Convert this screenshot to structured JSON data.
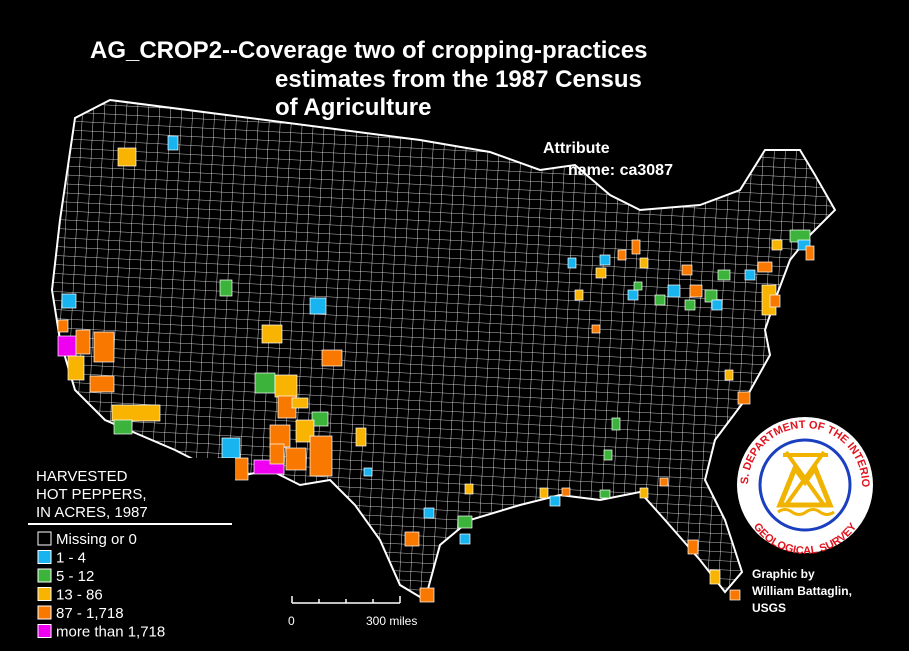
{
  "header": {
    "title_lines": [
      "AG_CROP2--Coverage  two  of  cropping-practices",
      "estimates  from  the  1987  Census",
      "of  Agriculture"
    ]
  },
  "attribute": {
    "label": "Attribute",
    "name": "name:  ca3087"
  },
  "legend": {
    "title_lines": [
      "HARVESTED",
      "HOT PEPPERS,",
      "IN ACRES, 1987"
    ],
    "items": [
      {
        "label": "Missing or 0",
        "color": "#000000"
      },
      {
        "label": "1  -  4",
        "color": "#18b4f0"
      },
      {
        "label": "5  -  12",
        "color": "#3cb43c"
      },
      {
        "label": "13  -  86",
        "color": "#f8b400"
      },
      {
        "label": "87  -  1,718",
        "color": "#f87800"
      },
      {
        "label": "more than 1,718",
        "color": "#f000f0"
      }
    ]
  },
  "scale": {
    "start": "0",
    "end": "300 miles"
  },
  "credit": {
    "lines": [
      "Graphic  by",
      "William  Battaglin,",
      "USGS"
    ]
  },
  "seal": {
    "top": "U.S. DEPARTMENT OF THE INTERIOR",
    "bottom": "GEOLOGICAL SURVEY"
  }
}
